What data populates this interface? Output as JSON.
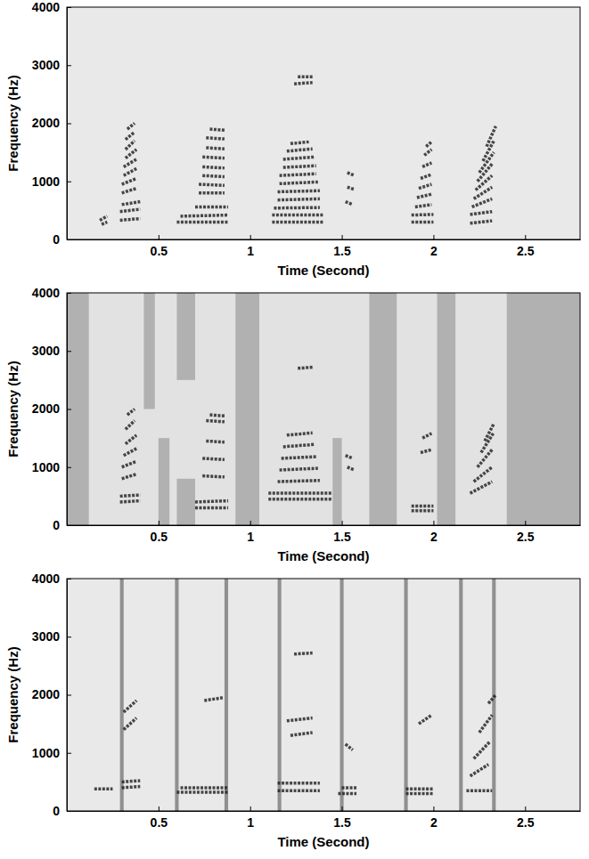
{
  "chart_data": [
    {
      "type": "spectrogram",
      "xlabel": "Time (Second)",
      "ylabel": "Frequency (Hz)",
      "xlim": [
        0,
        2.8
      ],
      "ylim": [
        0,
        4000
      ],
      "xticks": [
        0.5,
        1,
        1.5,
        2,
        2.5
      ],
      "yticks": [
        0,
        1000,
        2000,
        3000,
        4000
      ],
      "segments": {
        "t0": [
          0.18,
          0.19,
          0.29,
          0.29,
          0.3,
          0.3,
          0.3,
          0.31,
          0.31,
          0.32,
          0.32,
          0.32,
          0.33,
          0.6,
          0.62,
          0.7,
          0.72,
          0.72,
          0.74,
          0.74,
          0.74,
          0.76,
          0.76,
          0.78,
          1.12,
          1.12,
          1.13,
          1.15,
          1.15,
          1.16,
          1.16,
          1.18,
          1.18,
          1.2,
          1.22,
          1.24,
          1.26,
          1.52,
          1.53,
          1.53,
          1.88,
          1.88,
          1.9,
          1.91,
          1.92,
          1.93,
          1.94,
          1.95,
          1.96,
          2.2,
          2.2,
          2.21,
          2.22,
          2.23,
          2.24,
          2.25,
          2.27,
          2.29
        ],
        "t1": [
          0.22,
          0.22,
          0.4,
          0.4,
          0.4,
          0.38,
          0.38,
          0.38,
          0.38,
          0.38,
          0.37,
          0.37,
          0.37,
          0.88,
          0.88,
          0.88,
          0.86,
          0.86,
          0.86,
          0.86,
          0.86,
          0.86,
          0.86,
          0.86,
          1.4,
          1.4,
          1.38,
          1.38,
          1.38,
          1.37,
          1.36,
          1.36,
          1.35,
          1.34,
          1.32,
          1.34,
          1.34,
          1.56,
          1.57,
          1.57,
          2.0,
          2.0,
          1.99,
          1.99,
          1.99,
          1.99,
          1.99,
          1.99,
          1.99,
          2.32,
          2.32,
          2.32,
          2.32,
          2.32,
          2.32,
          2.33,
          2.33,
          2.34
        ],
        "f0": [
          330,
          260,
          330,
          480,
          600,
          800,
          950,
          1100,
          1250,
          1400,
          1550,
          1720,
          1900,
          300,
          400,
          560,
          800,
          950,
          1100,
          1250,
          1420,
          1580,
          1750,
          1900,
          300,
          420,
          540,
          680,
          820,
          960,
          1100,
          1240,
          1380,
          1520,
          1650,
          2680,
          2800,
          650,
          900,
          1150,
          300,
          420,
          560,
          720,
          880,
          1050,
          1250,
          1450,
          1600,
          280,
          430,
          560,
          700,
          850,
          1000,
          1150,
          1350,
          1600
        ],
        "f1": [
          400,
          300,
          360,
          520,
          650,
          880,
          1050,
          1220,
          1380,
          1550,
          1700,
          1850,
          2000,
          300,
          420,
          560,
          800,
          930,
          1080,
          1230,
          1400,
          1560,
          1730,
          1880,
          300,
          420,
          550,
          700,
          840,
          990,
          1130,
          1270,
          1420,
          1560,
          1680,
          2700,
          2800,
          600,
          860,
          1100,
          300,
          430,
          600,
          780,
          950,
          1120,
          1320,
          1550,
          1680,
          320,
          480,
          700,
          900,
          1100,
          1300,
          1500,
          1700,
          1950
        ]
      }
    },
    {
      "type": "spectrogram",
      "xlabel": "Time (Second)",
      "ylabel": "Frequency (Hz)",
      "xlim": [
        0,
        2.8
      ],
      "ylim": [
        0,
        4000
      ],
      "xticks": [
        0.5,
        1,
        1.5,
        2,
        2.5
      ],
      "yticks": [
        0,
        1000,
        2000,
        3000,
        4000
      ],
      "segments": {
        "t0": [
          0.29,
          0.29,
          0.3,
          0.3,
          0.31,
          0.32,
          0.32,
          0.33,
          0.7,
          0.7,
          0.74,
          0.74,
          0.76,
          0.76,
          0.78,
          1.1,
          1.1,
          1.15,
          1.16,
          1.17,
          1.18,
          1.2,
          1.26,
          1.52,
          1.53,
          1.88,
          1.88,
          1.93,
          1.94,
          2.2,
          2.22,
          2.24,
          2.26,
          2.28
        ],
        "t1": [
          0.4,
          0.4,
          0.38,
          0.38,
          0.38,
          0.38,
          0.37,
          0.37,
          0.88,
          0.88,
          0.86,
          0.86,
          0.86,
          0.86,
          0.86,
          1.45,
          1.45,
          1.38,
          1.37,
          1.36,
          1.35,
          1.34,
          1.34,
          1.56,
          1.57,
          2.0,
          2.0,
          1.99,
          1.99,
          2.32,
          2.32,
          2.32,
          2.33,
          2.33
        ],
        "f0": [
          400,
          500,
          800,
          1000,
          1200,
          1400,
          1650,
          1900,
          300,
          400,
          850,
          1150,
          1450,
          1800,
          1900,
          450,
          550,
          750,
          950,
          1150,
          1350,
          1550,
          2700,
          1200,
          1000,
          250,
          330,
          1250,
          1500,
          550,
          750,
          1000,
          1250,
          1450
        ],
        "f1": [
          420,
          520,
          880,
          1100,
          1320,
          1550,
          1800,
          2000,
          300,
          420,
          830,
          1130,
          1430,
          1780,
          1880,
          450,
          550,
          770,
          980,
          1180,
          1390,
          1590,
          2720,
          1150,
          950,
          250,
          330,
          1300,
          1580,
          750,
          1000,
          1300,
          1600,
          1750
        ]
      },
      "noise": {
        "t0": [
          0.0,
          0.42,
          0.5,
          0.6,
          0.6,
          0.92,
          1.45,
          1.65,
          2.02,
          2.4
        ],
        "t1": [
          0.12,
          0.48,
          0.56,
          0.7,
          0.7,
          1.05,
          1.5,
          1.8,
          2.12,
          2.8
        ],
        "f0": [
          0,
          2000,
          0,
          0,
          2500,
          0,
          0,
          0,
          0,
          0
        ],
        "f1": [
          4000,
          4000,
          1500,
          800,
          4000,
          4000,
          1500,
          4000,
          4000,
          4000
        ]
      }
    },
    {
      "type": "spectrogram",
      "xlabel": "Time (Second)",
      "ylabel": "Frequency (Hz)",
      "xlim": [
        0,
        2.8
      ],
      "ylim": [
        0,
        4000
      ],
      "xticks": [
        0.5,
        1,
        1.5,
        2,
        2.5
      ],
      "yticks": [
        0,
        1000,
        2000,
        3000,
        4000
      ],
      "segments": {
        "t0": [
          0.15,
          0.3,
          0.3,
          0.31,
          0.31,
          0.6,
          0.62,
          0.75,
          1.15,
          1.15,
          1.22,
          1.2,
          1.24,
          1.48,
          1.5,
          1.52,
          1.85,
          1.85,
          1.92,
          2.18,
          2.2,
          2.22,
          2.25,
          2.3
        ],
        "t1": [
          0.25,
          0.4,
          0.4,
          0.38,
          0.38,
          0.88,
          0.88,
          0.85,
          1.38,
          1.38,
          1.34,
          1.34,
          1.34,
          1.58,
          1.58,
          1.56,
          2.0,
          2.0,
          1.99,
          2.32,
          2.3,
          2.31,
          2.32,
          2.34
        ],
        "f0": [
          380,
          400,
          500,
          1400,
          1700,
          320,
          400,
          1900,
          350,
          480,
          1300,
          1550,
          2700,
          300,
          400,
          1150,
          300,
          380,
          1500,
          350,
          600,
          900,
          1350,
          1850
        ],
        "f1": [
          380,
          420,
          520,
          1600,
          1900,
          320,
          400,
          1950,
          350,
          480,
          1350,
          1600,
          2720,
          300,
          400,
          1050,
          300,
          380,
          1650,
          350,
          800,
          1200,
          1650,
          2000
        ]
      },
      "stripes": {
        "t0": [
          0.29,
          0.59,
          0.86,
          1.15,
          1.49,
          1.84,
          2.14,
          2.32
        ],
        "t1": [
          0.31,
          0.61,
          0.88,
          1.17,
          1.51,
          1.86,
          2.16,
          2.34
        ]
      }
    }
  ]
}
